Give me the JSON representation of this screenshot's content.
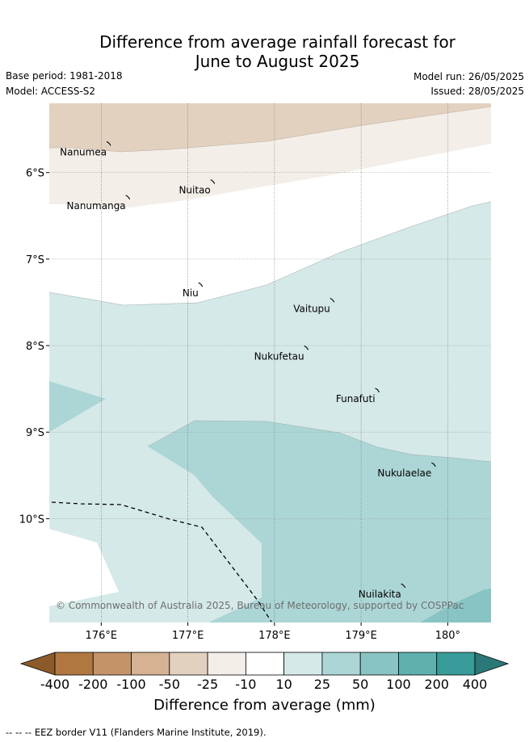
{
  "header": {
    "title_line1": "Difference from average rainfall forecast for",
    "title_line2": "June to August 2025",
    "base_period": "Base period: 1981-2018",
    "model": "Model: ACCESS-S2",
    "model_run": "Model run: 26/05/2025",
    "issued": "Issued: 28/05/2025"
  },
  "map": {
    "lat_labels": [
      "6°S",
      "7°S",
      "8°S",
      "9°S",
      "10°S"
    ],
    "lat_values": [
      -6,
      -7,
      -8,
      -9,
      -10
    ],
    "lon_labels": [
      "176°E",
      "177°E",
      "178°E",
      "179°E",
      "180°"
    ],
    "lon_values": [
      176,
      177,
      178,
      179,
      180
    ],
    "lon_range": [
      175.4,
      180.5
    ],
    "lat_range": [
      -5.2,
      -11.2
    ],
    "places": [
      {
        "name": "Nanumea",
        "lon": 176.1,
        "lat": -5.67
      },
      {
        "name": "Nuitao",
        "lon": 177.3,
        "lat": -6.11
      },
      {
        "name": "Nanumanga",
        "lon": 176.32,
        "lat": -6.29
      },
      {
        "name": "Niu",
        "lon": 177.16,
        "lat": -7.3
      },
      {
        "name": "Vaitupu",
        "lon": 178.68,
        "lat": -7.48
      },
      {
        "name": "Nukufetau",
        "lon": 178.38,
        "lat": -8.03
      },
      {
        "name": "Funafuti",
        "lon": 179.2,
        "lat": -8.52
      },
      {
        "name": "Nukulaelae",
        "lon": 179.85,
        "lat": -9.38
      },
      {
        "name": "Nuilakita",
        "lon": 179.5,
        "lat": -10.78
      }
    ],
    "copyright": "© Commonwealth of Australia 2025, Bureau of Meteorology, supported by COSPPac"
  },
  "colorbar": {
    "labels": [
      "-400",
      "-200",
      "-100",
      "-50",
      "-25",
      "-10",
      "10",
      "25",
      "50",
      "100",
      "200",
      "400"
    ],
    "colors": [
      "#8c5a2a",
      "#b07840",
      "#c49468",
      "#d4b292",
      "#e3d1c0",
      "#f3eee8",
      "#ffffff",
      "#d5e9e8",
      "#acd6d5",
      "#88c4c3",
      "#5fb0ae",
      "#379c9a",
      "#2a7877"
    ],
    "title": "Difference from average (mm)"
  },
  "footer": {
    "eez_note": "-- -- -- EEZ border V11 (Flanders Marine Institute, 2019)."
  }
}
